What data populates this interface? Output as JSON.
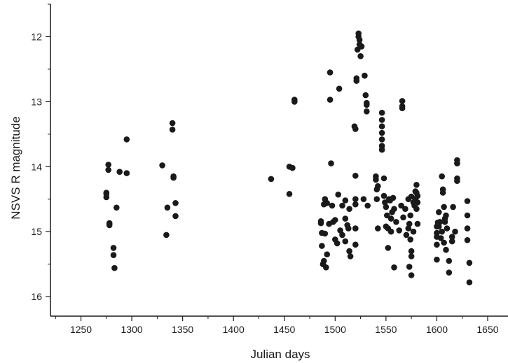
{
  "chart_data": {
    "type": "scatter",
    "title": "",
    "xlabel": "Julian days",
    "ylabel": "NSVS R magnitude",
    "xlim": [
      1220,
      1670
    ],
    "ylim": [
      16.3,
      11.5
    ],
    "y_inverted": true,
    "grid": false,
    "legend": "none",
    "marker_color": "#1a1a1a",
    "x_ticks": [
      1250,
      1300,
      1350,
      1400,
      1450,
      1500,
      1550,
      1600,
      1650
    ],
    "y_ticks": [
      12,
      13,
      14,
      15,
      16
    ],
    "x_tick_labels": [
      "1250",
      "1300",
      "1350",
      "1400",
      "1450",
      "1500",
      "1550",
      "1600",
      "1650"
    ],
    "y_tick_labels": [
      "12",
      "13",
      "14",
      "15",
      "16"
    ],
    "series": [
      {
        "points": [
          [
            1275,
            14.4
          ],
          [
            1275,
            14.42
          ],
          [
            1275,
            14.47
          ],
          [
            1277,
            13.97
          ],
          [
            1277,
            14.05
          ],
          [
            1278,
            14.87
          ],
          [
            1278,
            14.9
          ],
          [
            1282,
            15.25
          ],
          [
            1282,
            15.36
          ],
          [
            1283,
            15.56
          ],
          [
            1285,
            14.63
          ],
          [
            1288,
            14.08
          ],
          [
            1295,
            14.1
          ],
          [
            1295,
            13.58
          ],
          [
            1330,
            13.98
          ],
          [
            1334,
            15.05
          ],
          [
            1335,
            14.63
          ],
          [
            1340,
            13.33
          ],
          [
            1340,
            13.43
          ],
          [
            1341,
            14.15
          ],
          [
            1341,
            14.17
          ],
          [
            1343,
            14.56
          ],
          [
            1343,
            14.76
          ],
          [
            1437,
            14.19
          ],
          [
            1455,
            14.0
          ],
          [
            1455,
            14.42
          ],
          [
            1458,
            14.02
          ],
          [
            1460,
            12.97
          ],
          [
            1460,
            13.0
          ],
          [
            1486,
            14.84
          ],
          [
            1486,
            14.87
          ],
          [
            1487,
            15.02
          ],
          [
            1487,
            15.22
          ],
          [
            1488,
            15.5
          ],
          [
            1489,
            14.58
          ],
          [
            1489,
            15.45
          ],
          [
            1490,
            14.5
          ],
          [
            1490,
            15.03
          ],
          [
            1491,
            15.55
          ],
          [
            1492,
            14.56
          ],
          [
            1492,
            15.35
          ],
          [
            1494,
            14.88
          ],
          [
            1495,
            12.55
          ],
          [
            1495,
            12.97
          ],
          [
            1496,
            13.95
          ],
          [
            1497,
            14.6
          ],
          [
            1498,
            14.85
          ],
          [
            1500,
            14.82
          ],
          [
            1500,
            15.12
          ],
          [
            1502,
            15.18
          ],
          [
            1503,
            14.43
          ],
          [
            1504,
            12.8
          ],
          [
            1505,
            14.98
          ],
          [
            1507,
            14.6
          ],
          [
            1507,
            15.05
          ],
          [
            1510,
            14.52
          ],
          [
            1510,
            14.8
          ],
          [
            1510,
            15.15
          ],
          [
            1512,
            14.9
          ],
          [
            1513,
            14.95
          ],
          [
            1514,
            14.65
          ],
          [
            1514,
            15.3
          ],
          [
            1515,
            15.38
          ],
          [
            1519,
            13.38
          ],
          [
            1520,
            13.42
          ],
          [
            1520,
            14.14
          ],
          [
            1520,
            14.5
          ],
          [
            1520,
            14.58
          ],
          [
            1520,
            14.95
          ],
          [
            1520,
            15.2
          ],
          [
            1521,
            12.68
          ],
          [
            1521,
            12.64
          ],
          [
            1522,
            12.2
          ],
          [
            1523,
            12.0
          ],
          [
            1523,
            11.95
          ],
          [
            1524,
            12.05
          ],
          [
            1524,
            12.12
          ],
          [
            1525,
            12.3
          ],
          [
            1526,
            12.15
          ],
          [
            1528,
            14.5
          ],
          [
            1529,
            12.6
          ],
          [
            1530,
            12.9
          ],
          [
            1531,
            13.02
          ],
          [
            1531,
            13.05
          ],
          [
            1531,
            13.15
          ],
          [
            1532,
            14.6
          ],
          [
            1540,
            14.15
          ],
          [
            1540,
            14.2
          ],
          [
            1541,
            14.35
          ],
          [
            1541,
            14.5
          ],
          [
            1542,
            14.3
          ],
          [
            1542,
            14.95
          ],
          [
            1546,
            13.17
          ],
          [
            1546,
            13.28
          ],
          [
            1546,
            13.38
          ],
          [
            1546,
            13.48
          ],
          [
            1546,
            13.58
          ],
          [
            1546,
            13.68
          ],
          [
            1546,
            13.74
          ],
          [
            1548,
            14.18
          ],
          [
            1548,
            14.45
          ],
          [
            1549,
            14.55
          ],
          [
            1550,
            14.62
          ],
          [
            1550,
            14.92
          ],
          [
            1551,
            14.75
          ],
          [
            1552,
            15.25
          ],
          [
            1552,
            14.95
          ],
          [
            1553,
            14.5
          ],
          [
            1554,
            14.52
          ],
          [
            1555,
            14.8
          ],
          [
            1555,
            15.0
          ],
          [
            1556,
            14.7
          ],
          [
            1557,
            14.48
          ],
          [
            1558,
            14.65
          ],
          [
            1558,
            15.55
          ],
          [
            1560,
            14.85
          ],
          [
            1563,
            14.98
          ],
          [
            1565,
            14.6
          ],
          [
            1566,
            12.99
          ],
          [
            1566,
            13.07
          ],
          [
            1566,
            13.1
          ],
          [
            1567,
            14.78
          ],
          [
            1569,
            14.65
          ],
          [
            1570,
            15.05
          ],
          [
            1572,
            14.5
          ],
          [
            1572,
            14.95
          ],
          [
            1573,
            14.88
          ],
          [
            1573,
            15.54
          ],
          [
            1574,
            14.75
          ],
          [
            1574,
            15.12
          ],
          [
            1575,
            14.46
          ],
          [
            1575,
            15.3
          ],
          [
            1575,
            15.38
          ],
          [
            1575,
            15.67
          ],
          [
            1577,
            15.0
          ],
          [
            1577,
            14.55
          ],
          [
            1578,
            14.6
          ],
          [
            1579,
            14.38
          ],
          [
            1579,
            14.5
          ],
          [
            1580,
            14.28
          ],
          [
            1580,
            14.4
          ],
          [
            1580,
            14.65
          ],
          [
            1581,
            14.45
          ],
          [
            1581,
            14.55
          ],
          [
            1581,
            14.88
          ],
          [
            1600,
            14.92
          ],
          [
            1600,
            15.02
          ],
          [
            1600,
            15.08
          ],
          [
            1600,
            15.2
          ],
          [
            1600,
            15.43
          ],
          [
            1601,
            14.86
          ],
          [
            1602,
            14.7
          ],
          [
            1602,
            14.92
          ],
          [
            1603,
            14.85
          ],
          [
            1604,
            15.1
          ],
          [
            1605,
            14.15
          ],
          [
            1605,
            15.0
          ],
          [
            1606,
            14.35
          ],
          [
            1606,
            14.4
          ],
          [
            1607,
            14.62
          ],
          [
            1607,
            15.17
          ],
          [
            1608,
            14.8
          ],
          [
            1608,
            14.85
          ],
          [
            1609,
            14.75
          ],
          [
            1609,
            15.28
          ],
          [
            1610,
            14.95
          ],
          [
            1612,
            15.45
          ],
          [
            1612,
            15.63
          ],
          [
            1615,
            15.08
          ],
          [
            1615,
            15.15
          ],
          [
            1616,
            14.62
          ],
          [
            1618,
            15.0
          ],
          [
            1620,
            13.9
          ],
          [
            1620,
            13.95
          ],
          [
            1620,
            14.18
          ],
          [
            1620,
            14.22
          ],
          [
            1630,
            14.53
          ],
          [
            1630,
            14.75
          ],
          [
            1630,
            14.95
          ],
          [
            1630,
            15.13
          ],
          [
            1632,
            15.48
          ],
          [
            1632,
            15.78
          ]
        ]
      }
    ]
  }
}
